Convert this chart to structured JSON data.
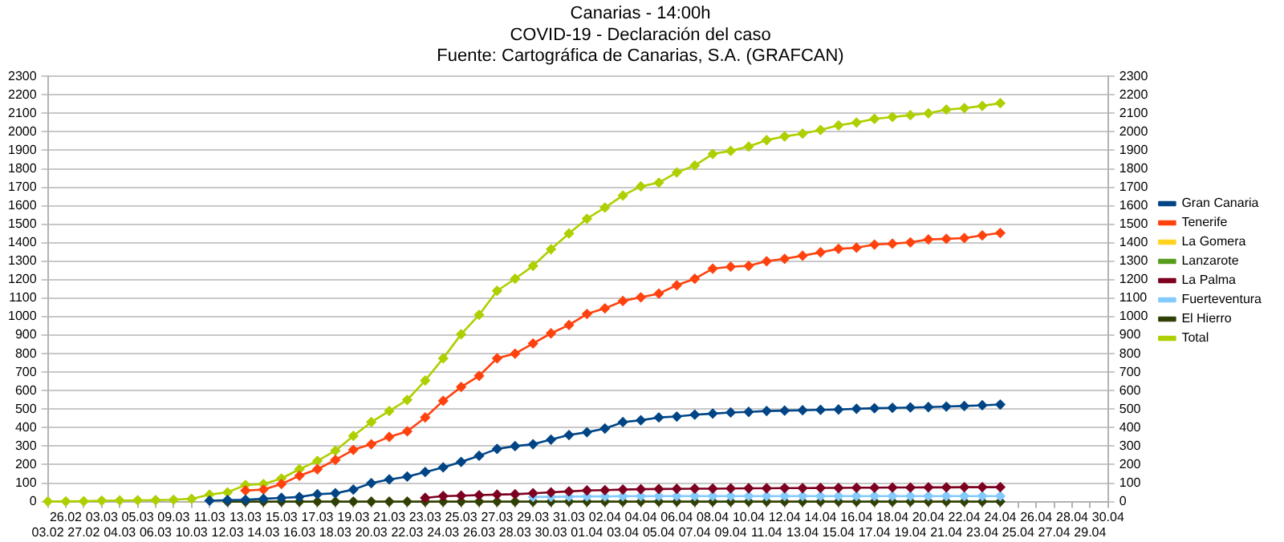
{
  "chart_data": {
    "type": "line",
    "title": "Canarias - 14:00h",
    "subtitle": "COVID-19 - Declaración del caso",
    "annotations": [
      "Fuente: Cartográfica de Canarias, S.A. (GRAFCAN)"
    ],
    "categories": [
      "03.02",
      "26.02",
      "27.02",
      "03.03",
      "04.03",
      "05.03",
      "06.03",
      "09.03",
      "10.03",
      "11.03",
      "12.03",
      "13.03",
      "14.03",
      "15.03",
      "16.03",
      "17.03",
      "18.03",
      "19.03",
      "20.03",
      "21.03",
      "22.03",
      "23.03",
      "24.03",
      "25.03",
      "26.03",
      "27.03",
      "28.03",
      "29.03",
      "30.03",
      "31.03",
      "01.04",
      "02.04",
      "03.04",
      "04.04",
      "05.04",
      "06.04",
      "07.04",
      "08.04",
      "09.04",
      "10.04",
      "11.04",
      "12.04",
      "13.04",
      "14.04",
      "15.04",
      "16.04",
      "17.04",
      "18.04",
      "19.04",
      "20.04",
      "21.04",
      "22.04",
      "23.04",
      "24.04",
      "25.04",
      "26.04",
      "27.04",
      "28.04",
      "29.04",
      "30.04"
    ],
    "series": [
      {
        "name": "Gran Canaria",
        "color": "#004586",
        "values": [
          null,
          null,
          null,
          null,
          null,
          null,
          null,
          null,
          null,
          5,
          8,
          10,
          15,
          20,
          25,
          40,
          45,
          65,
          100,
          120,
          135,
          160,
          185,
          215,
          248,
          285,
          300,
          310,
          335,
          360,
          375,
          395,
          430,
          440,
          455,
          460,
          470,
          476,
          482,
          485,
          490,
          492,
          494,
          496,
          498,
          502,
          505,
          507,
          509,
          511,
          514,
          517,
          521,
          525,
          null,
          null,
          null,
          null,
          null,
          null
        ]
      },
      {
        "name": "Tenerife",
        "color": "#ff420e",
        "values": [
          null,
          null,
          null,
          null,
          null,
          null,
          null,
          null,
          null,
          null,
          null,
          60,
          65,
          95,
          140,
          175,
          225,
          280,
          310,
          350,
          380,
          455,
          545,
          620,
          680,
          775,
          800,
          855,
          910,
          955,
          1015,
          1045,
          1085,
          1105,
          1125,
          1170,
          1205,
          1260,
          1270,
          1275,
          1300,
          1313,
          1330,
          1348,
          1367,
          1373,
          1390,
          1395,
          1402,
          1418,
          1421,
          1425,
          1440,
          1453,
          null,
          null,
          null,
          null,
          null,
          null
        ]
      },
      {
        "name": "La Gomera",
        "color": "#ffd320",
        "values": [
          null,
          null,
          null,
          null,
          null,
          null,
          null,
          null,
          null,
          null,
          null,
          null,
          null,
          null,
          null,
          null,
          null,
          null,
          null,
          null,
          null,
          null,
          null,
          null,
          null,
          null,
          null,
          null,
          null,
          null,
          null,
          null,
          null,
          null,
          null,
          null,
          null,
          null,
          null,
          null,
          null,
          null,
          null,
          null,
          null,
          null,
          null,
          null,
          null,
          null,
          null,
          null,
          null,
          null,
          null,
          null,
          null,
          null,
          null,
          null
        ]
      },
      {
        "name": "Lanzarote",
        "color": "#579d1c",
        "values": [
          null,
          null,
          null,
          null,
          null,
          null,
          null,
          null,
          null,
          null,
          null,
          null,
          null,
          null,
          null,
          null,
          null,
          null,
          null,
          null,
          null,
          null,
          null,
          null,
          null,
          null,
          null,
          null,
          null,
          null,
          null,
          null,
          null,
          null,
          null,
          null,
          null,
          null,
          null,
          null,
          null,
          null,
          null,
          null,
          null,
          null,
          null,
          null,
          null,
          null,
          null,
          null,
          null,
          null,
          null,
          null,
          null,
          null,
          null,
          null
        ]
      },
      {
        "name": "La Palma",
        "color": "#7e0021",
        "values": [
          null,
          null,
          null,
          null,
          null,
          null,
          null,
          null,
          null,
          null,
          null,
          null,
          null,
          null,
          null,
          null,
          null,
          null,
          null,
          null,
          null,
          20,
          30,
          32,
          35,
          38,
          40,
          45,
          50,
          55,
          60,
          62,
          65,
          67,
          68,
          69,
          70,
          70,
          71,
          72,
          72,
          73,
          73,
          74,
          74,
          75,
          75,
          76,
          76,
          77,
          77,
          78,
          78,
          78,
          null,
          null,
          null,
          null,
          null,
          null
        ]
      },
      {
        "name": "Fuerteventura",
        "color": "#83caff",
        "values": [
          null,
          null,
          null,
          null,
          null,
          null,
          null,
          null,
          null,
          null,
          null,
          null,
          null,
          null,
          null,
          null,
          null,
          null,
          null,
          null,
          null,
          null,
          null,
          null,
          null,
          null,
          null,
          25,
          26,
          27,
          28,
          28,
          29,
          30,
          30,
          30,
          30,
          30,
          30,
          30,
          30,
          30,
          30,
          30,
          30,
          30,
          30,
          30,
          30,
          30,
          30,
          30,
          30,
          30,
          null,
          null,
          null,
          null,
          null,
          null
        ]
      },
      {
        "name": "El Hierro",
        "color": "#314004",
        "values": [
          null,
          null,
          null,
          null,
          null,
          null,
          null,
          null,
          null,
          null,
          0,
          0,
          0,
          0,
          0,
          0,
          0,
          0,
          0,
          0,
          0,
          0,
          0,
          0,
          0,
          0,
          0,
          0,
          0,
          0,
          0,
          0,
          0,
          0,
          0,
          0,
          0,
          0,
          0,
          0,
          0,
          0,
          0,
          0,
          0,
          0,
          0,
          0,
          0,
          0,
          0,
          0,
          0,
          0,
          null,
          null,
          null,
          null,
          null,
          null
        ]
      },
      {
        "name": "Total",
        "color": "#aecf00",
        "values": [
          1,
          1,
          2,
          5,
          6,
          7,
          8,
          10,
          15,
          38,
          50,
          90,
          95,
          125,
          175,
          220,
          275,
          355,
          430,
          490,
          550,
          655,
          775,
          905,
          1010,
          1140,
          1205,
          1275,
          1365,
          1450,
          1530,
          1590,
          1655,
          1705,
          1725,
          1780,
          1818,
          1880,
          1897,
          1920,
          1955,
          1975,
          1990,
          2010,
          2035,
          2050,
          2070,
          2080,
          2090,
          2100,
          2120,
          2128,
          2140,
          2155,
          null,
          null,
          null,
          null,
          null,
          null
        ]
      }
    ],
    "ylim": [
      0,
      2300
    ],
    "yticks": [
      0,
      100,
      200,
      300,
      400,
      500,
      600,
      700,
      800,
      900,
      1000,
      1100,
      1200,
      1300,
      1400,
      1500,
      1600,
      1700,
      1800,
      1900,
      2000,
      2100,
      2200,
      2300
    ],
    "y2lim": [
      0,
      2300
    ],
    "y2ticks": [
      0,
      100,
      200,
      300,
      400,
      500,
      600,
      700,
      800,
      900,
      1000,
      1100,
      1200,
      1300,
      1400,
      1500,
      1600,
      1700,
      1800,
      1900,
      2000,
      2100,
      2200,
      2300
    ],
    "grid": "y",
    "legend": "right",
    "marker": "diamond",
    "line_style": "solid"
  }
}
